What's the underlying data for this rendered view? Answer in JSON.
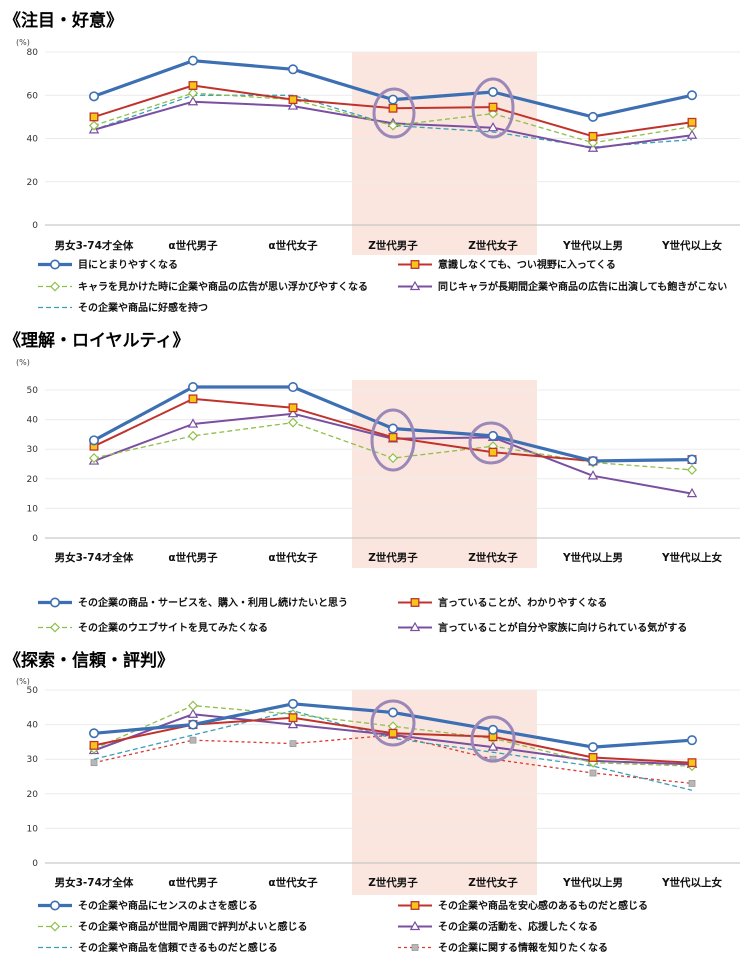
{
  "chart_data": [
    {
      "type": "line",
      "title": "《注目・好意》",
      "ylabel": "(%)",
      "ylim": [
        0,
        80
      ],
      "yticks": [
        0,
        20,
        40,
        60,
        80
      ],
      "categories": [
        "男女3-74才全体",
        "α世代男子",
        "α世代女子",
        "Z世代男子",
        "Z世代女子",
        "Y世代以上男",
        "Y世代以上女"
      ],
      "highlight_categories": [
        "Z世代男子",
        "Z世代女子"
      ],
      "series": [
        {
          "name": "目にとまりやすくなる",
          "values": [
            59.5,
            76,
            72,
            58,
            61.5,
            50,
            60
          ],
          "color": "#3d6fb3",
          "style": "thick",
          "marker": "circle"
        },
        {
          "name": "意識しなくても、つい視野に入ってくる",
          "values": [
            50,
            64.5,
            58,
            54,
            54.5,
            41,
            47.5
          ],
          "color": "#c0332c",
          "style": "solid",
          "marker": "square"
        },
        {
          "name": "キャラを見かけた時に企業や商品の広告が思い浮かびやすくなる",
          "values": [
            46,
            61,
            58,
            46,
            51.5,
            38,
            45.5
          ],
          "color": "#8fbf4a",
          "style": "dashed",
          "marker": "diamond"
        },
        {
          "name": "同じキャラが長期間企業や商品の広告に出演しても飽きがこない",
          "values": [
            44,
            57,
            55,
            47,
            45,
            35.5,
            41.5
          ],
          "color": "#7a4fa0",
          "style": "solid",
          "marker": "triangle"
        },
        {
          "name": "その企業や商品に好感を持つ",
          "values": [
            44,
            60,
            60,
            46,
            43,
            36,
            39.5
          ],
          "color": "#3aa0b8",
          "style": "dashed",
          "marker": "none"
        }
      ]
    },
    {
      "type": "line",
      "title": "《理解・ロイヤルティ》",
      "ylabel": "(%)",
      "ylim": [
        0,
        50
      ],
      "yticks": [
        0,
        10,
        20,
        30,
        40,
        50
      ],
      "categories": [
        "男女3-74才全体",
        "α世代男子",
        "α世代女子",
        "Z世代男子",
        "Z世代女子",
        "Y世代以上男",
        "Y世代以上女"
      ],
      "highlight_categories": [
        "Z世代男子",
        "Z世代女子"
      ],
      "series": [
        {
          "name": "その企業の商品・サービスを、購入・利用し続けたいと思う",
          "values": [
            33,
            51,
            51,
            37,
            34.5,
            26,
            26.5
          ],
          "color": "#3d6fb3",
          "style": "thick",
          "marker": "circle"
        },
        {
          "name": "言っていることが、わかりやすくなる",
          "values": [
            31,
            47,
            44,
            34,
            29,
            26,
            26.5
          ],
          "color": "#c0332c",
          "style": "solid",
          "marker": "square"
        },
        {
          "name": "その企業のウエブサイトを見てみたくなる",
          "values": [
            27,
            34.5,
            39,
            27,
            31,
            25.5,
            23
          ],
          "color": "#8fbf4a",
          "style": "dashed",
          "marker": "diamond"
        },
        {
          "name": "言っていることが自分や家族に向けられている気がする",
          "values": [
            26,
            38.5,
            42,
            33.5,
            34,
            21,
            15
          ],
          "color": "#7a4fa0",
          "style": "solid",
          "marker": "triangle"
        }
      ]
    },
    {
      "type": "line",
      "title": "《探索・信頼・評判》",
      "ylabel": "(%)",
      "ylim": [
        0,
        50
      ],
      "yticks": [
        0,
        10,
        20,
        30,
        40,
        50
      ],
      "categories": [
        "男女3-74才全体",
        "α世代男子",
        "α世代女子",
        "Z世代男子",
        "Z世代女子",
        "Y世代以上男",
        "Y世代以上女"
      ],
      "highlight_categories": [
        "Z世代男子",
        "Z世代女子"
      ],
      "series": [
        {
          "name": "その企業や商品にセンスのよさを感じる",
          "values": [
            37.5,
            40,
            46,
            43.5,
            38.5,
            33.5,
            35.5
          ],
          "color": "#3d6fb3",
          "style": "thick",
          "marker": "circle"
        },
        {
          "name": "その企業や商品を安心感のあるものだと感じる",
          "values": [
            34,
            40,
            42,
            37.5,
            36.5,
            30.5,
            29
          ],
          "color": "#c0332c",
          "style": "solid",
          "marker": "square"
        },
        {
          "name": "その企業や商品が世間や周囲で評判がよいと感じる",
          "values": [
            33,
            45.5,
            43,
            39.5,
            36,
            29,
            28
          ],
          "color": "#8fbf4a",
          "style": "dashed",
          "marker": "diamond"
        },
        {
          "name": "その企業の活動を、応援したくなる",
          "values": [
            32.5,
            43,
            40,
            37,
            33.5,
            29.5,
            28.5
          ],
          "color": "#7a4fa0",
          "style": "solid",
          "marker": "triangle"
        },
        {
          "name": "その企業や商品を信頼できるものだと感じる",
          "values": [
            30,
            37,
            44,
            36,
            32,
            28,
            21
          ],
          "color": "#3aa0b8",
          "style": "dashed",
          "marker": "none"
        },
        {
          "name": "その企業に関する情報を知りたくなる",
          "values": [
            29,
            35.5,
            34.5,
            37,
            30,
            26,
            23
          ],
          "color": "#d93a32",
          "style": "dotted",
          "marker": "smallsquare"
        }
      ]
    }
  ]
}
